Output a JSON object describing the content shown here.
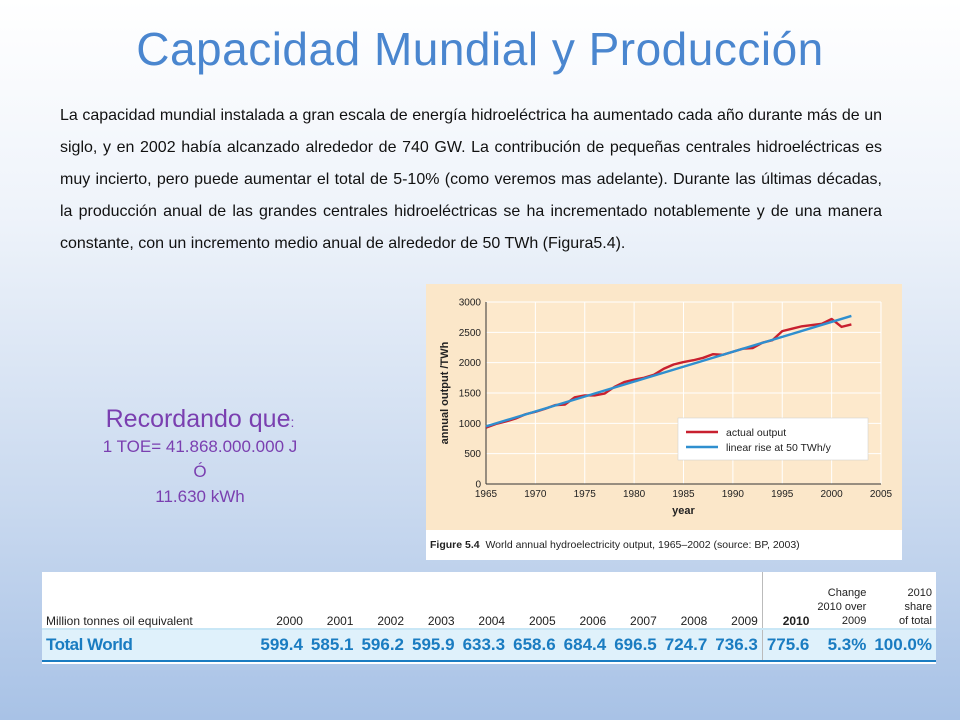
{
  "title": "Capacidad Mundial y Producción",
  "paragraph": "La capacidad mundial instalada a gran escala de energía hidroeléctrica ha aumentado  cada año durante más de un siglo, y en 2002 había alcanzado alrededor de 740 GW. La contribución de pequeñas centrales hidroeléctricas es muy incierto, pero puede aumentar el total de 5-10% (como veremos mas adelante). Durante las últimas décadas, la producción anual de las grandes centrales hidroeléctricas se ha incrementado notablemente y de una manera constante, con un incremento medio anual de alrededor de 50 TWh (Figura5.4).",
  "reminder": {
    "heading": "Recordando que",
    "colon": ":",
    "line1": "1 TOE= 41.868.000.000  J",
    "line2": "Ó",
    "line3": "11.630 kWh"
  },
  "figure": {
    "caption_label": "Figure 5.4",
    "caption_text": "World annual hydroelectricity output, 1965–2002 (source: BP, 2003)"
  },
  "chart_data": {
    "type": "line",
    "xlabel": "year",
    "ylabel": "annual output /TWh",
    "xlim": [
      1965,
      2005
    ],
    "ylim": [
      0,
      3000
    ],
    "xticks": [
      1965,
      1970,
      1975,
      1980,
      1985,
      1990,
      1995,
      2000,
      2005
    ],
    "yticks": [
      0,
      500,
      1000,
      1500,
      2000,
      2500,
      3000
    ],
    "grid": true,
    "legend_position": "bottom-right",
    "series": [
      {
        "name": "actual output",
        "color": "#c8202f",
        "x": [
          1965,
          1966,
          1967,
          1968,
          1969,
          1970,
          1971,
          1972,
          1973,
          1974,
          1975,
          1976,
          1977,
          1978,
          1979,
          1980,
          1981,
          1982,
          1983,
          1984,
          1985,
          1986,
          1987,
          1988,
          1989,
          1990,
          1991,
          1992,
          1993,
          1994,
          1995,
          1996,
          1997,
          1998,
          1999,
          2000,
          2001,
          2002
        ],
        "y": [
          930,
          990,
          1030,
          1080,
          1150,
          1190,
          1240,
          1300,
          1310,
          1430,
          1460,
          1460,
          1490,
          1600,
          1680,
          1720,
          1750,
          1800,
          1900,
          1970,
          2010,
          2040,
          2080,
          2140,
          2130,
          2180,
          2230,
          2240,
          2330,
          2370,
          2520,
          2560,
          2600,
          2620,
          2640,
          2720,
          2590,
          2630
        ]
      },
      {
        "name": "linear rise at 50 TWh/y",
        "color": "#2f8fcf",
        "x": [
          1965,
          2002
        ],
        "y": [
          950,
          2770
        ]
      }
    ]
  },
  "table": {
    "header_label": "Million tonnes oil equivalent",
    "years": [
      "2000",
      "2001",
      "2002",
      "2003",
      "2004",
      "2005",
      "2006",
      "2007",
      "2008",
      "2009",
      "2010"
    ],
    "change_header": [
      "Change",
      "2010 over",
      "2009"
    ],
    "share_header": [
      "2010",
      "share",
      "of total"
    ],
    "row_label": "Total World",
    "values": [
      "599.4",
      "585.1",
      "596.2",
      "595.9",
      "633.3",
      "658.6",
      "684.4",
      "696.5",
      "724.7",
      "736.3",
      "775.6"
    ],
    "change": "5.3%",
    "share": "100.0%"
  }
}
